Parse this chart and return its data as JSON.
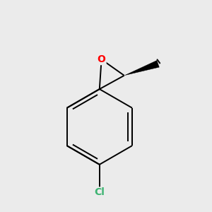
{
  "background_color": "#ebebeb",
  "bond_color": "#000000",
  "O_color": "#ff0000",
  "Cl_color": "#3cb371",
  "O_label": "O",
  "Cl_label": "Cl",
  "figsize": [
    3.0,
    3.0
  ],
  "dpi": 100,
  "xlim": [
    -1.0,
    1.2
  ],
  "ylim": [
    -2.0,
    1.2
  ]
}
